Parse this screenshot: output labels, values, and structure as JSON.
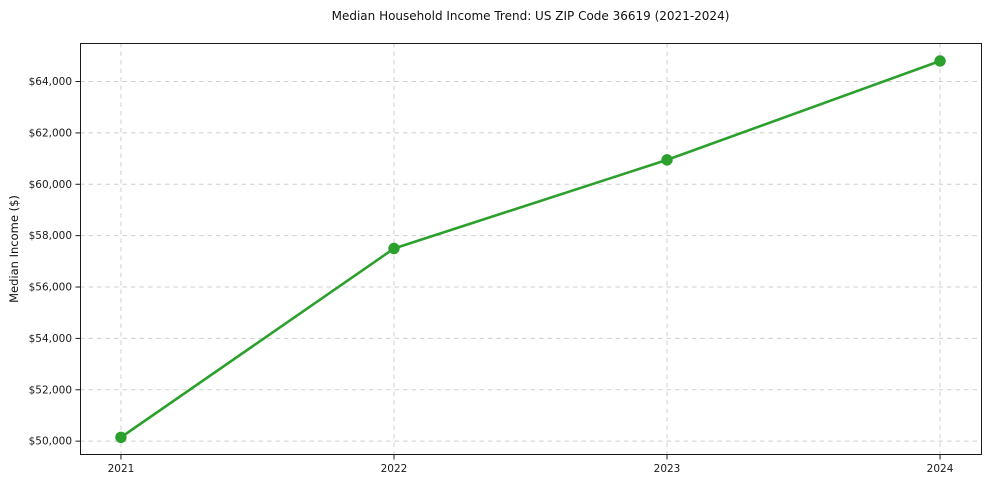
{
  "chart_data": {
    "type": "line",
    "title": "Median Household Income Trend: US ZIP Code 36619 (2021-2024)",
    "xlabel": "",
    "ylabel": "Median Income ($)",
    "x": [
      2021,
      2022,
      2023,
      2024
    ],
    "series": [
      {
        "name": "Median Household Income",
        "values": [
          50150,
          57500,
          60950,
          64800
        ]
      }
    ],
    "x_ticks": [
      2021,
      2022,
      2023,
      2024
    ],
    "x_tick_labels": [
      "2021",
      "2022",
      "2023",
      "2024"
    ],
    "y_ticks": [
      50000,
      52000,
      54000,
      56000,
      58000,
      60000,
      62000,
      64000
    ],
    "y_tick_labels": [
      "$50,000",
      "$52,000",
      "$54,000",
      "$56,000",
      "$58,000",
      "$60,000",
      "$62,000",
      "$64,000"
    ],
    "xlim": [
      2020.85,
      2024.15
    ],
    "ylim": [
      49500,
      65500
    ],
    "grid": true,
    "grid_style": "dashed",
    "legend": "none",
    "line_color": "#2ca02c",
    "marker": "circle",
    "marker_color": "#2ca02c",
    "grid_color": "#cfcfcf",
    "spine_color": "#1a1a1a",
    "tick_text_color": "#1a1a1a",
    "background": "#ffffff"
  }
}
